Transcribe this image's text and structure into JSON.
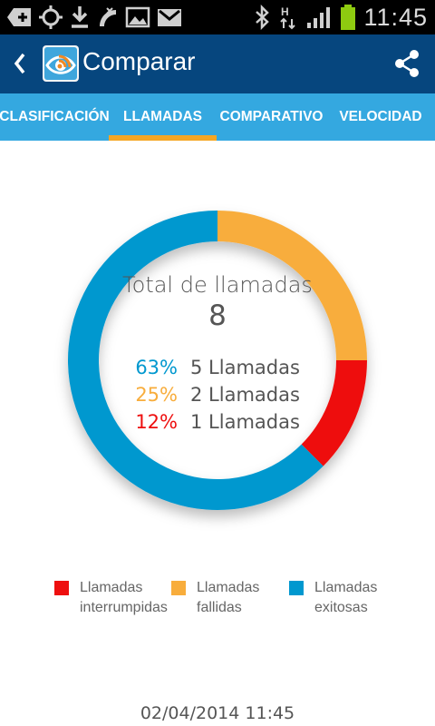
{
  "status_bar": {
    "time": "11:45",
    "icons": [
      "add-notification-icon",
      "gps-icon",
      "download-icon",
      "missed-call-icon",
      "image-icon",
      "gmail-icon",
      "bluetooth-icon",
      "hspa-data-icon",
      "signal-icon",
      "battery-icon"
    ]
  },
  "action_bar": {
    "title": "Comparar",
    "back_icon": "chevron-left-icon",
    "share_icon": "share-icon"
  },
  "tabs": [
    {
      "label": "CLASIFICACIÓN",
      "selected": false
    },
    {
      "label": "LLAMADAS",
      "selected": true
    },
    {
      "label": "COMPARATIVO",
      "selected": false
    },
    {
      "label": "VELOCIDAD",
      "selected": false
    }
  ],
  "summary": {
    "total_label": "Total de llamadas",
    "total_value": "8",
    "stats": [
      {
        "percent": "63%",
        "count": "5 Llamadas",
        "color": "#0098cf"
      },
      {
        "percent": "25%",
        "count": "2 Llamadas",
        "color": "#f8ad3c"
      },
      {
        "percent": "12%",
        "count": "1 Llamadas",
        "color": "#ee0f0f"
      }
    ]
  },
  "chart_data": {
    "type": "pie",
    "categories": [
      "Llamadas fallidas",
      "Llamadas interrumpidas",
      "Llamadas exitosas"
    ],
    "values": [
      2,
      1,
      5
    ],
    "colors": [
      "#f8ad3c",
      "#ee0f0f",
      "#0098cf"
    ]
  },
  "legend": [
    {
      "label": "Llamadas interrumpidas",
      "color": "#ee0f0f"
    },
    {
      "label": "Llamadas fallidas",
      "color": "#f8ad3c"
    },
    {
      "label": "Llamadas exitosas",
      "color": "#0098cf"
    }
  ],
  "timestamp": "02/04/2014 11:45"
}
